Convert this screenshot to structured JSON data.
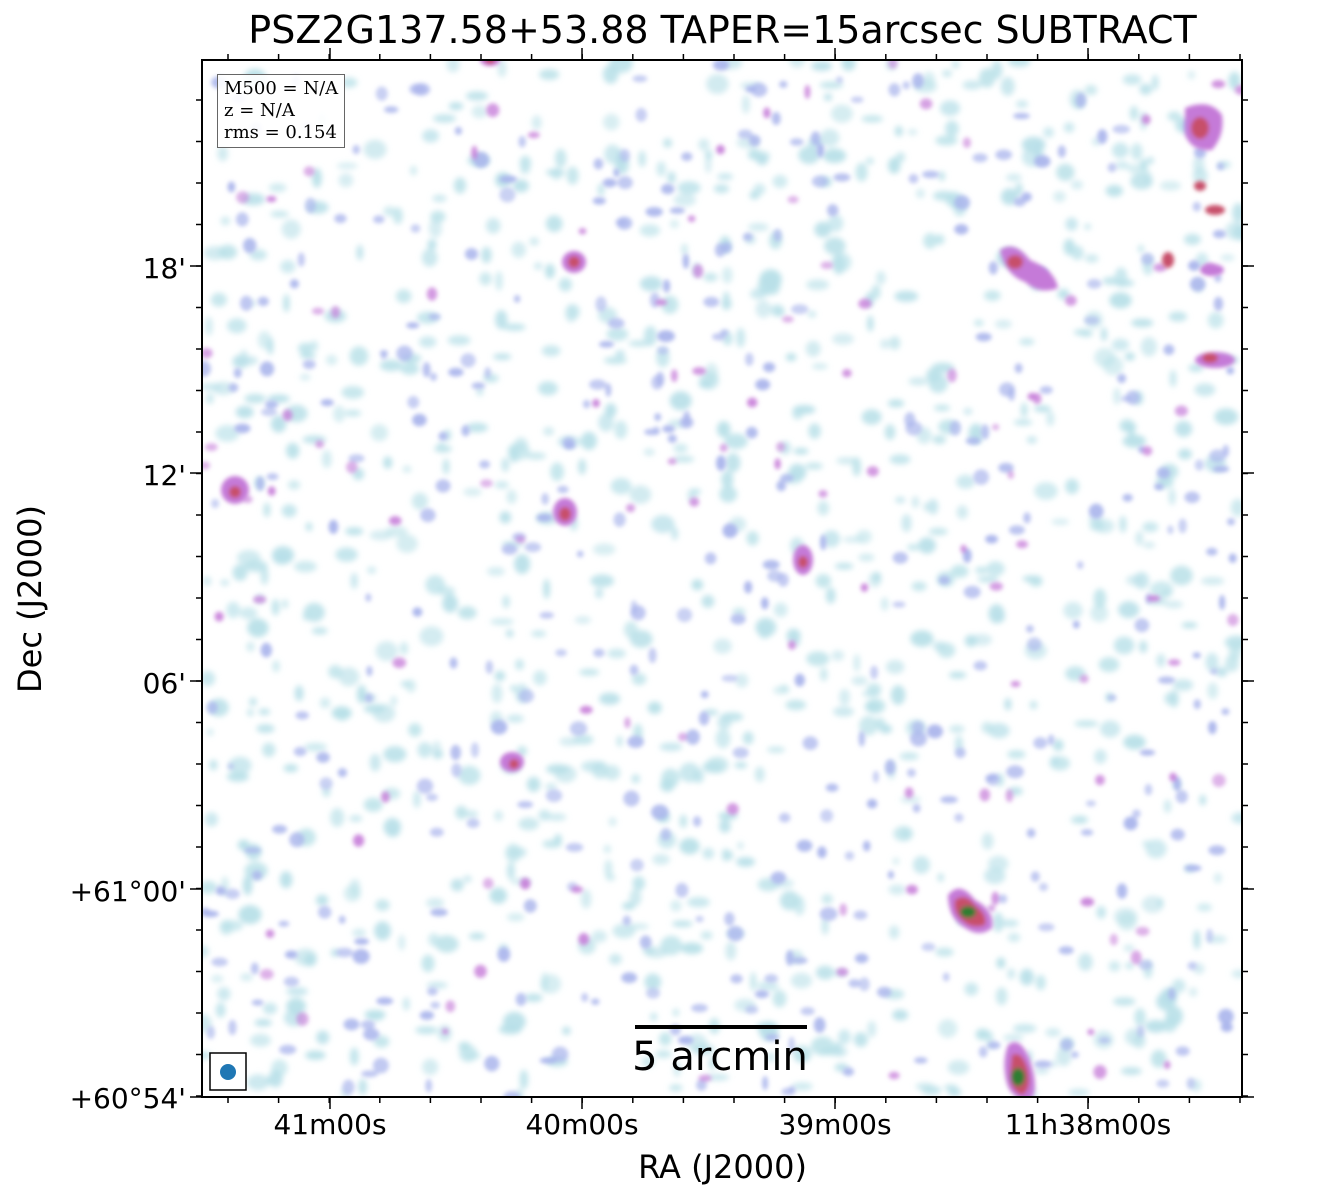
{
  "title": "PSZ2G137.58+53.88 TAPER=15arcsec SUBTRACT",
  "axes": {
    "xlabel": "RA (J2000)",
    "ylabel": "Dec (J2000)",
    "xticks": [
      "41m00s",
      "40m00s",
      "39m00s",
      "11h38m00s"
    ],
    "yticks": [
      "18'",
      "12'",
      "06'",
      "+61°00'",
      "+60°54'"
    ]
  },
  "info": {
    "m500": "M500 = N/A",
    "z": "z = N/A",
    "rms": "rms = 0.154"
  },
  "scalebar": {
    "label": "5 arcmin"
  },
  "colors": {
    "faint": "#b8e0e8",
    "low": "#a9b4ec",
    "mid": "#c57ad8",
    "high": "#c7506a",
    "peak": "#2e7d32",
    "beam": "#1f77b4"
  },
  "sources": {
    "strong": [
      {
        "name": "compact source north-center",
        "level": "high"
      },
      {
        "name": "extended source south-east",
        "level": "peak"
      },
      {
        "name": "source bottom edge",
        "level": "peak"
      },
      {
        "name": "source north-east",
        "level": "high"
      }
    ]
  }
}
